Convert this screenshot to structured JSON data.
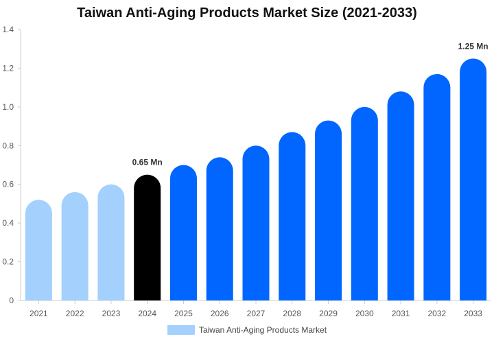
{
  "chart_data": {
    "type": "bar",
    "title": "Taiwan Anti-Aging Products Market Size (2021-2033)",
    "categories": [
      "2021",
      "2022",
      "2023",
      "2024",
      "2025",
      "2026",
      "2027",
      "2028",
      "2029",
      "2030",
      "2031",
      "2032",
      "2033"
    ],
    "series": [
      {
        "name": "Taiwan Anti-Aging Products Market",
        "values": [
          0.52,
          0.56,
          0.6,
          0.65,
          0.7,
          0.74,
          0.8,
          0.87,
          0.93,
          1.0,
          1.08,
          1.17,
          1.25
        ]
      }
    ],
    "bar_colors": [
      "#a3d0fc",
      "#a3d0fc",
      "#a3d0fc",
      "#000000",
      "#0066ff",
      "#0066ff",
      "#0066ff",
      "#0066ff",
      "#0066ff",
      "#0066ff",
      "#0066ff",
      "#0066ff",
      "#0066ff"
    ],
    "data_labels": [
      {
        "category": "2024",
        "text": "0.65 Mn"
      },
      {
        "category": "2033",
        "text": "1.25 Mn"
      }
    ],
    "y_ticks": [
      "0",
      "0.2",
      "0.4",
      "0.6",
      "0.8",
      "1.0",
      "1.2",
      "1.4"
    ],
    "ylim": [
      0,
      1.4
    ],
    "xlabel": "",
    "ylabel": "",
    "grid": false,
    "legend_position": "bottom-center",
    "legend_color": "#a3d0fc"
  }
}
